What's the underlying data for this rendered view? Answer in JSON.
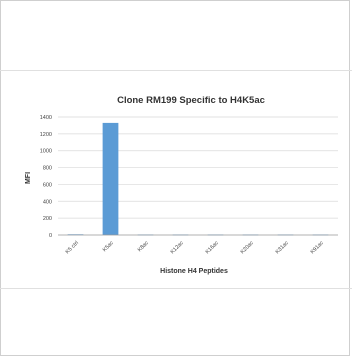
{
  "chart_data": {
    "type": "bar",
    "title": "Clone RM199 Specific to H4K5ac",
    "xlabel": "Histone H4 Peptides",
    "ylabel": "MFI",
    "categories": [
      "K5 ctrl",
      "K5ac",
      "K8ac",
      "K12ac",
      "K16ac",
      "K20ac",
      "K31ac",
      "K91ac"
    ],
    "values": [
      8,
      1330,
      6,
      6,
      6,
      6,
      6,
      6
    ],
    "ylim": [
      0,
      1400
    ],
    "yticks": [
      0,
      200,
      400,
      600,
      800,
      1000,
      1200,
      1400
    ],
    "grid": true,
    "legend": "none",
    "bar_color": "#5b9bd5"
  }
}
